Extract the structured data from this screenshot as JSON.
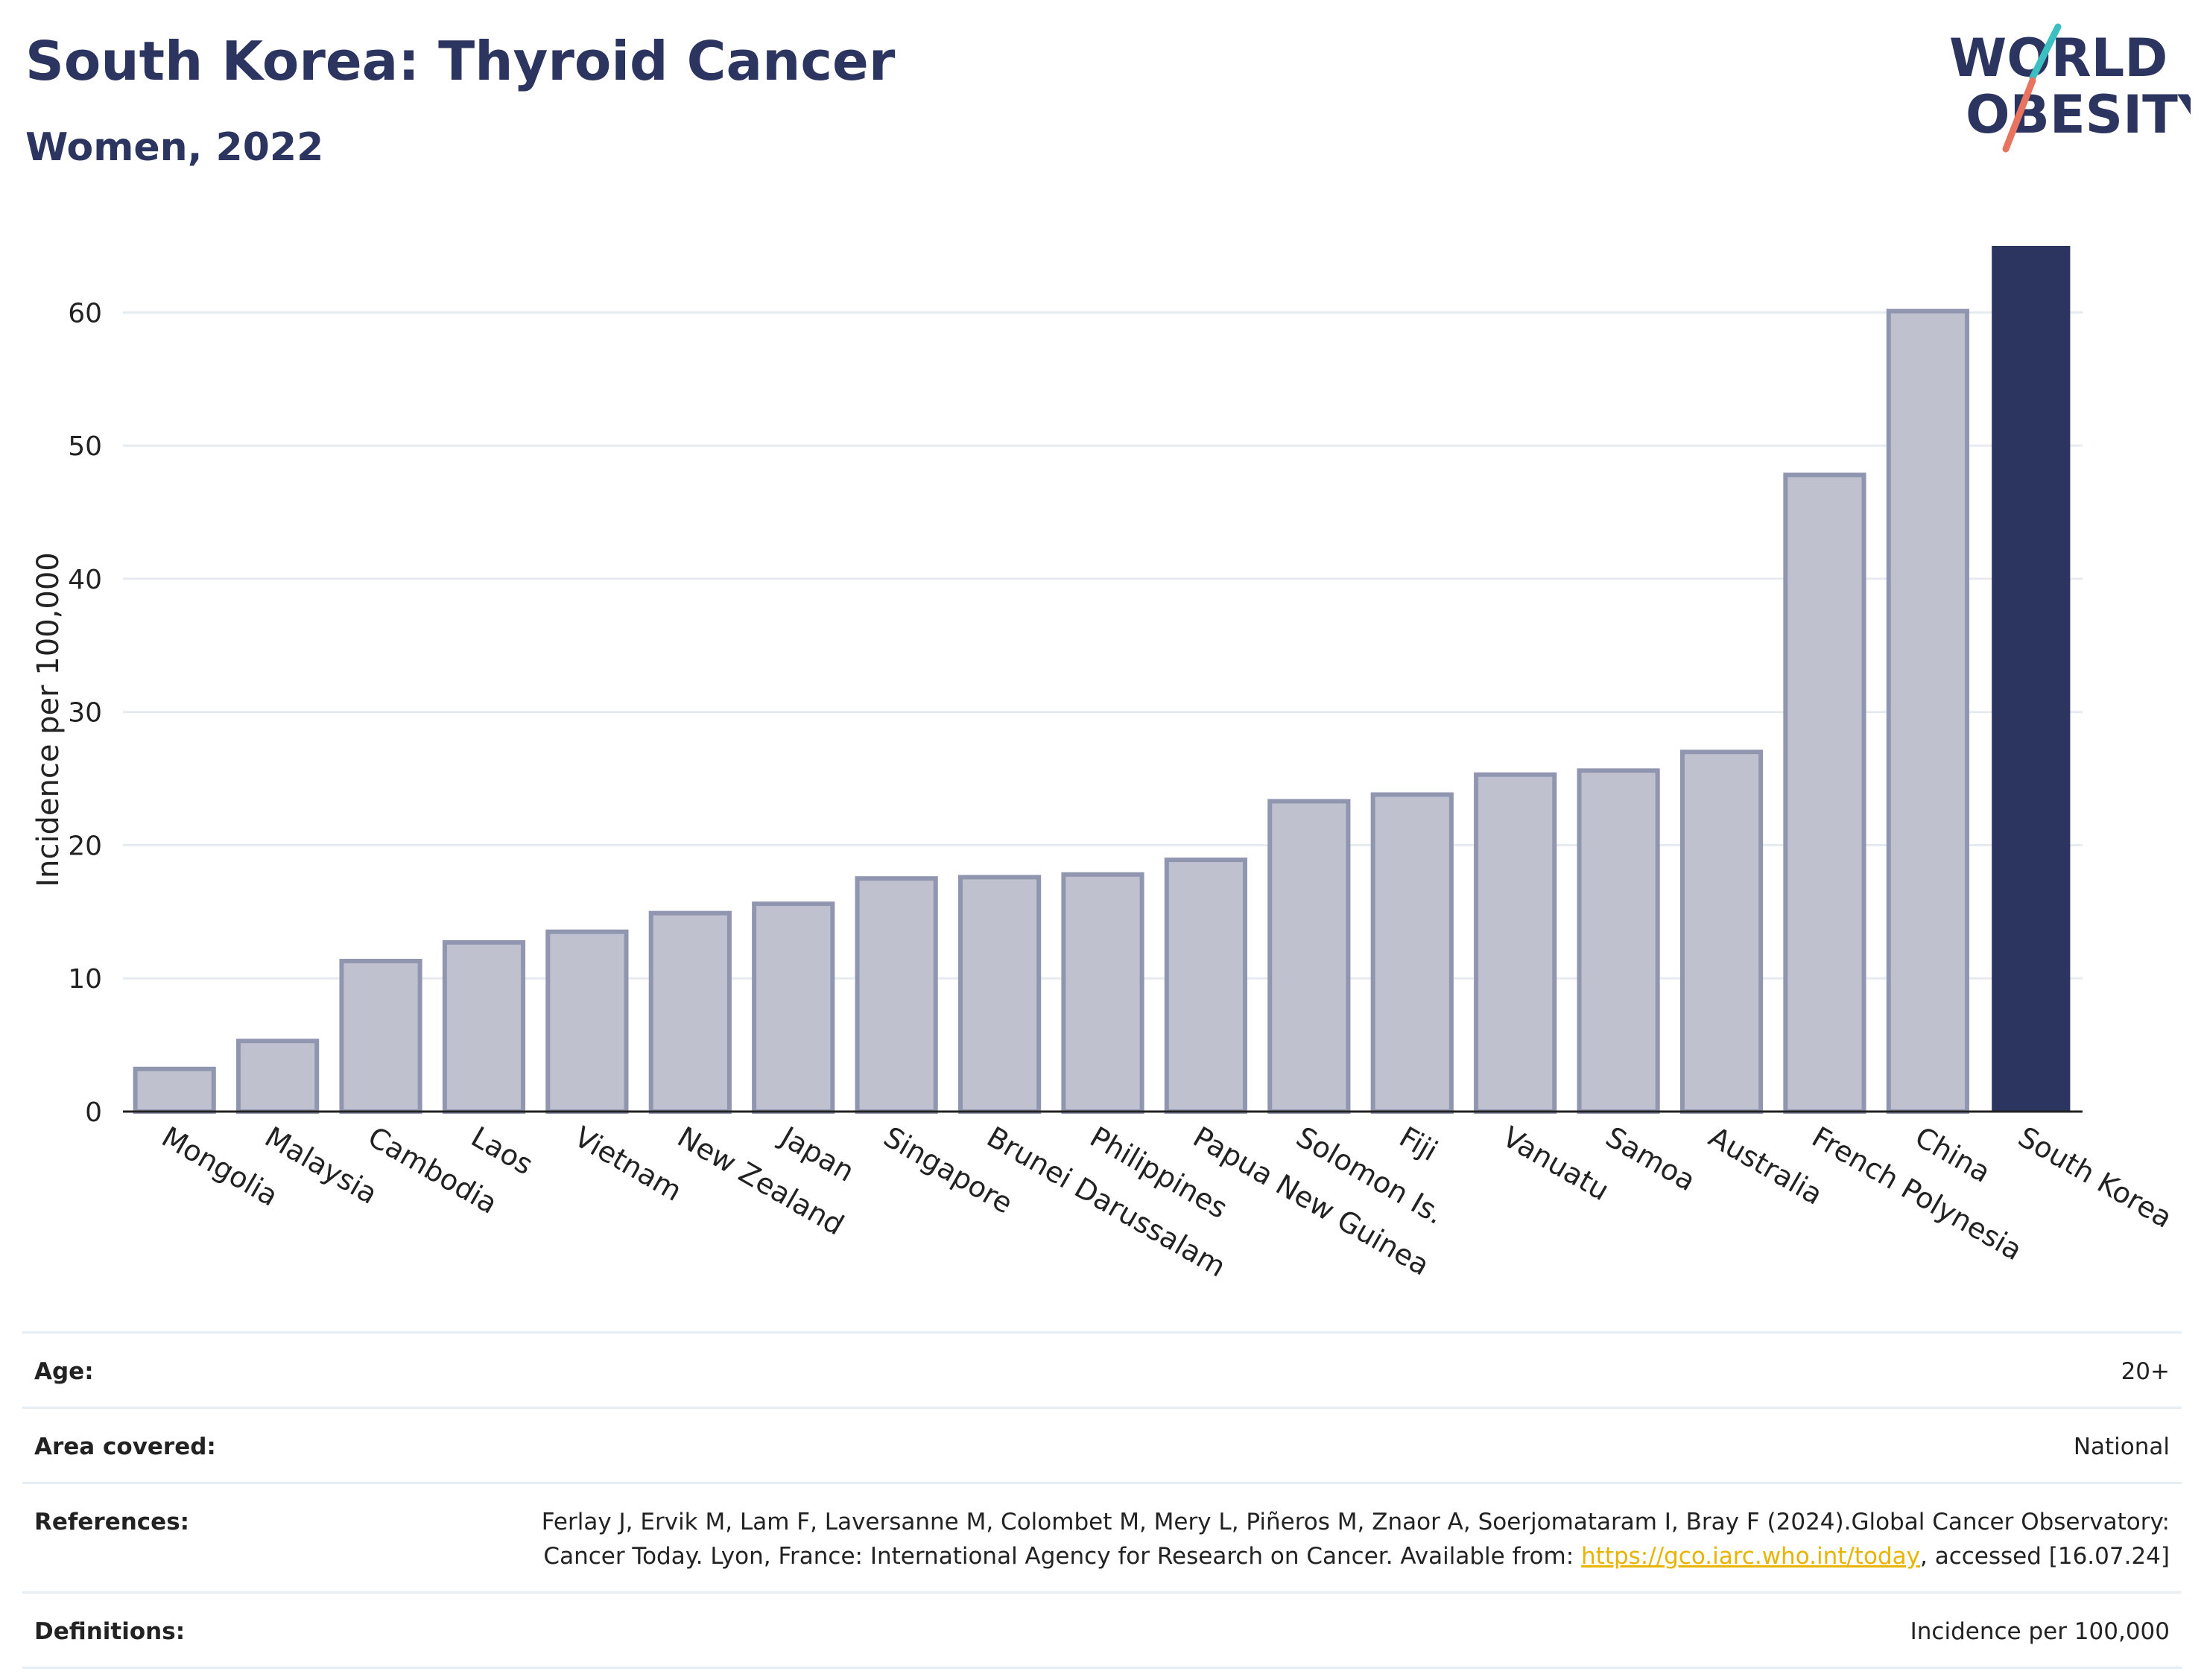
{
  "header": {
    "title": "South Korea: Thyroid Cancer",
    "subtitle": "Women, 2022"
  },
  "logo": {
    "line1": "WORLD",
    "line2": "OBESITY",
    "text_color": "#2b3560",
    "slash_colors": [
      "#3cbfc1",
      "#e8735e"
    ]
  },
  "chart_data": {
    "type": "bar",
    "title": "South Korea: Thyroid Cancer",
    "subtitle": "Women, 2022",
    "xlabel": "",
    "ylabel": "Incidence per 100,000",
    "ylim": [
      0,
      65
    ],
    "yticks": [
      0,
      10,
      20,
      30,
      40,
      50,
      60
    ],
    "grid": true,
    "categories": [
      "Mongolia",
      "Malaysia",
      "Cambodia",
      "Laos",
      "Vietnam",
      "New Zealand",
      "Japan",
      "Singapore",
      "Brunei Darussalam",
      "Philippines",
      "Papua New Guinea",
      "Solomon Is.",
      "Fiji",
      "Vanuatu",
      "Samoa",
      "Australia",
      "French Polynesia",
      "China",
      "South Korea"
    ],
    "values": [
      3.2,
      5.3,
      11.3,
      12.7,
      13.5,
      14.9,
      15.6,
      17.5,
      17.6,
      17.8,
      18.9,
      23.3,
      23.8,
      25.3,
      25.6,
      27.0,
      47.8,
      60.1,
      65.0
    ],
    "highlight": "South Korea",
    "colors": {
      "bar": "#bfc2ce",
      "bar_border": "#9096b0",
      "highlight": "#2b3560",
      "grid": "#e6ebf1",
      "axis": "#222222"
    }
  },
  "meta": {
    "rows": [
      {
        "label": "Age:",
        "value": "20+"
      },
      {
        "label": "Area covered:",
        "value": "National"
      },
      {
        "label": "References:",
        "value_before": "Ferlay J, Ervik M, Lam F, Laversanne M, Colombet M, Mery L, Piñeros M, Znaor A, Soerjomataram I, Bray F (2024).Global Cancer Observatory: Cancer Today. Lyon, France: International Agency for Research on Cancer. Available from: ",
        "link": "https://gco.iarc.who.int/today",
        "value_after": ", accessed [16.07.24]"
      },
      {
        "label": "Definitions:",
        "value": "Incidence per 100,000"
      }
    ]
  }
}
